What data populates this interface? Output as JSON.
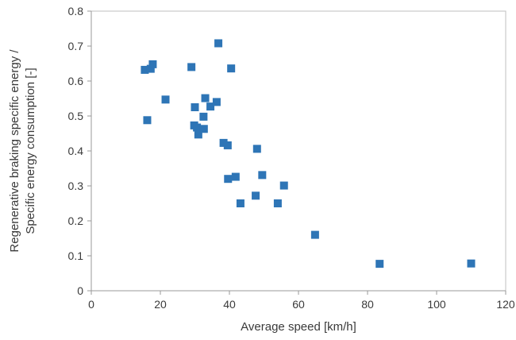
{
  "chart_data": {
    "type": "scatter",
    "title": "",
    "xlabel": "Average speed [km/h]",
    "ylabel_lines": [
      "Regenerative braking specific energy /",
      "Specific energy consumption [-]"
    ],
    "xlim": [
      0,
      120
    ],
    "ylim": [
      0,
      0.8
    ],
    "x_ticks": [
      0,
      20,
      40,
      60,
      80,
      100,
      120
    ],
    "y_ticks": [
      0,
      0.1,
      0.2,
      0.3,
      0.4,
      0.5,
      0.6,
      0.7,
      0.8
    ],
    "x_tick_labels": [
      "0",
      "20",
      "40",
      "60",
      "80",
      "100",
      "120"
    ],
    "y_tick_labels": [
      "0",
      "0.1",
      "0.2",
      "0.3",
      "0.4",
      "0.5",
      "0.6",
      "0.7",
      "0.8"
    ],
    "grid": false,
    "legend": "none",
    "marker": "square",
    "marker_color": "#2E75B6",
    "points": [
      {
        "x": 15.5,
        "y": 0.632
      },
      {
        "x": 17.2,
        "y": 0.635
      },
      {
        "x": 17.8,
        "y": 0.648
      },
      {
        "x": 16.2,
        "y": 0.488
      },
      {
        "x": 21.5,
        "y": 0.547
      },
      {
        "x": 29.0,
        "y": 0.64
      },
      {
        "x": 36.8,
        "y": 0.708
      },
      {
        "x": 40.5,
        "y": 0.636
      },
      {
        "x": 30.0,
        "y": 0.525
      },
      {
        "x": 33.0,
        "y": 0.551
      },
      {
        "x": 34.5,
        "y": 0.527
      },
      {
        "x": 36.3,
        "y": 0.54
      },
      {
        "x": 32.5,
        "y": 0.498
      },
      {
        "x": 29.8,
        "y": 0.473
      },
      {
        "x": 30.6,
        "y": 0.467
      },
      {
        "x": 31.0,
        "y": 0.447
      },
      {
        "x": 32.6,
        "y": 0.463
      },
      {
        "x": 38.3,
        "y": 0.423
      },
      {
        "x": 39.5,
        "y": 0.416
      },
      {
        "x": 48.0,
        "y": 0.406
      },
      {
        "x": 39.6,
        "y": 0.32
      },
      {
        "x": 41.8,
        "y": 0.326
      },
      {
        "x": 49.5,
        "y": 0.331
      },
      {
        "x": 55.8,
        "y": 0.301
      },
      {
        "x": 43.2,
        "y": 0.25
      },
      {
        "x": 47.6,
        "y": 0.272
      },
      {
        "x": 54.0,
        "y": 0.25
      },
      {
        "x": 64.8,
        "y": 0.16
      },
      {
        "x": 83.5,
        "y": 0.077
      },
      {
        "x": 110.0,
        "y": 0.078
      }
    ]
  }
}
